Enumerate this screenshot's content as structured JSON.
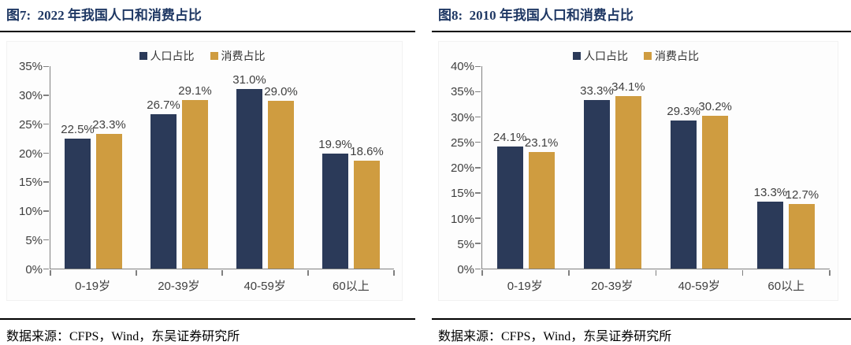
{
  "colors": {
    "population_series": "#2B3A59",
    "consumption_series": "#CF9C40",
    "title_text": "#1F3864",
    "axis_line": "#808080",
    "value_label_text": "#3F3F3F"
  },
  "chart_data": [
    {
      "type": "bar",
      "title": "图7:  2022 年我国人口和消费占比",
      "source": "数据来源：CFPS，Wind，东吴证券研究所",
      "categories": [
        "0-19岁",
        "20-39岁",
        "40-59岁",
        "60以上"
      ],
      "series": [
        {
          "name": "人口占比",
          "values": [
            22.5,
            26.7,
            31.0,
            19.9
          ]
        },
        {
          "name": "消费占比",
          "values": [
            23.3,
            29.1,
            29.0,
            18.6
          ]
        }
      ],
      "ylim": [
        0,
        35
      ],
      "ytick_step": 5,
      "ytick_suffix": "%",
      "grid": false,
      "legend_position": "top",
      "value_label_format": "one-decimal-percent"
    },
    {
      "type": "bar",
      "title": "图8:  2010 年我国人口和消费占比",
      "source": "数据来源：CFPS，Wind，东吴证券研究所",
      "categories": [
        "0-19岁",
        "20-39岁",
        "40-59岁",
        "60以上"
      ],
      "series": [
        {
          "name": "人口占比",
          "values": [
            24.1,
            33.3,
            29.3,
            13.3
          ]
        },
        {
          "name": "消费占比",
          "values": [
            23.1,
            34.1,
            30.2,
            12.7
          ]
        }
      ],
      "ylim": [
        0,
        40
      ],
      "ytick_step": 5,
      "ytick_suffix": "%",
      "grid": false,
      "legend_position": "top",
      "value_label_format": "one-decimal-percent"
    }
  ]
}
